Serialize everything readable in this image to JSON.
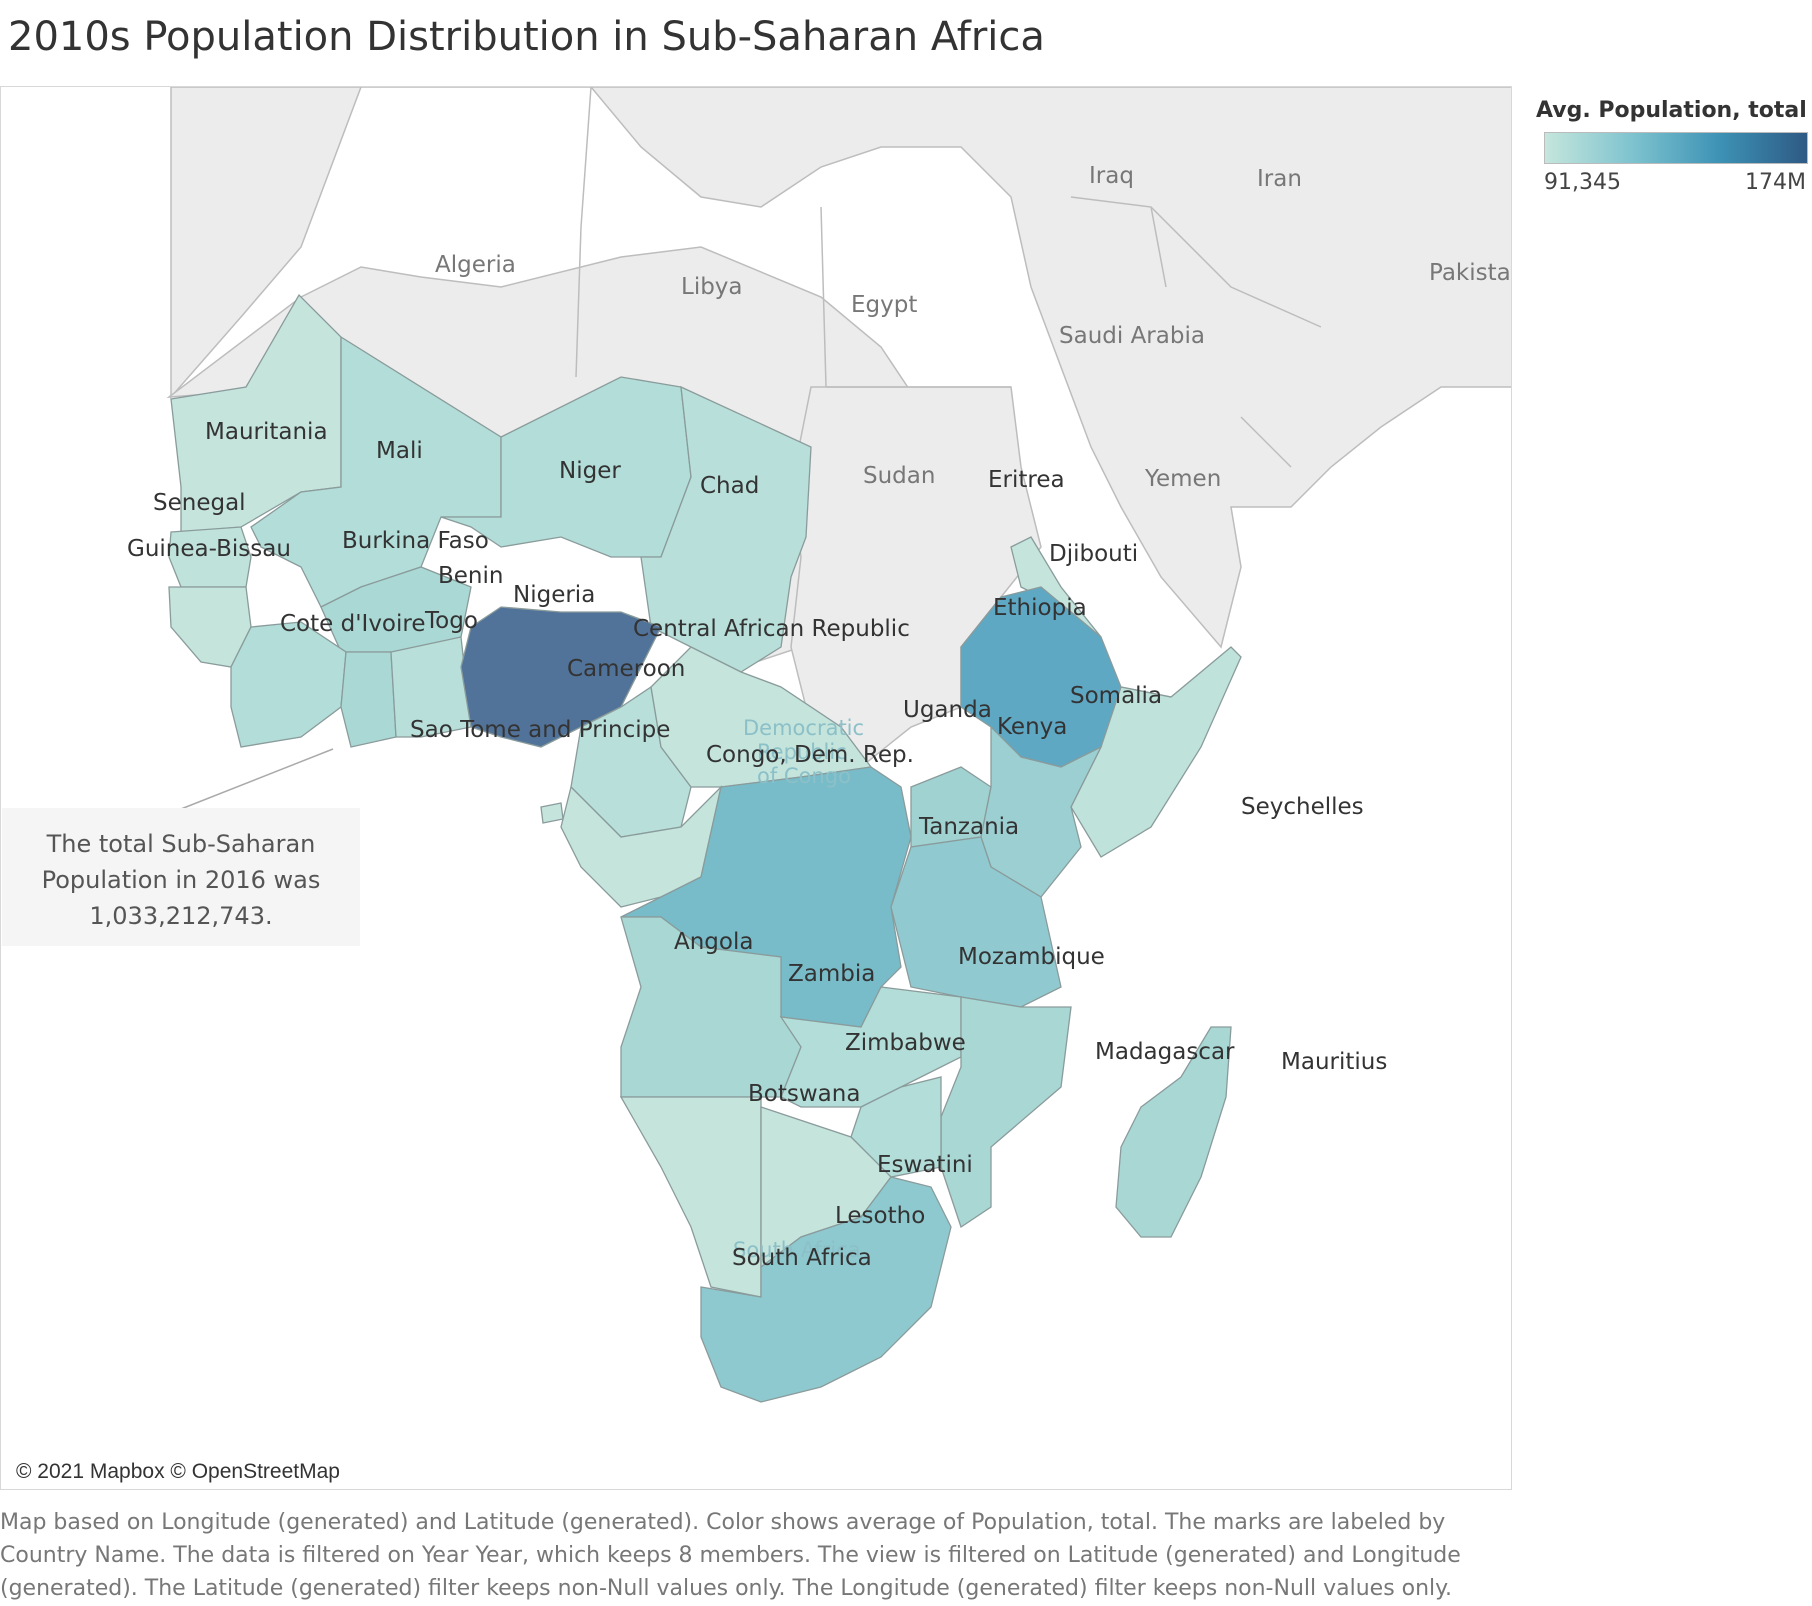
{
  "title": "2010s Population Distribution in Sub-Saharan Africa",
  "legend": {
    "title": "Avg. Population, total",
    "min_label": "91,345",
    "max_label": "174M",
    "colors": [
      "#c5e6dc",
      "#7ec3cf",
      "#3d92b5",
      "#2e5a85"
    ]
  },
  "annotation": {
    "line1": "The total Sub-Saharan",
    "line2": "Population in 2016 was",
    "line3": "1,033,212,743."
  },
  "attribution": "© 2021 Mapbox © OpenStreetMap",
  "caption": "Map based on Longitude (generated) and Latitude (generated).  Color shows average of Population, total.  The marks are labeled by Country Name. The data is filtered on Year Year, which keeps 8 members. The view is filtered on Latitude (generated) and Longitude (generated). The Latitude (generated) filter keeps non-Null values only. The Longitude (generated) filter keeps non-Null values only.",
  "basemap_labels": {
    "algeria": "Algeria",
    "libya": "Libya",
    "egypt": "Egypt",
    "iraq": "Iraq",
    "iran": "Iran",
    "saudi_arabia": "Saudi Arabia",
    "pakistan": "Pakistan",
    "sudan": "Sudan",
    "yemen": "Yemen",
    "drc_line1": "Democratic",
    "drc_line2": "Republic",
    "drc_line3": "of Congo",
    "south_africa": "South Africa"
  },
  "country_labels": {
    "mauritania": "Mauritania",
    "mali": "Mali",
    "niger": "Niger",
    "chad": "Chad",
    "senegal": "Senegal",
    "guinea_bissau": "Guinea-Bissau",
    "burkina_faso": "Burkina Faso",
    "benin": "Benin",
    "nigeria": "Nigeria",
    "cote_divoire": "Cote d'Ivoire",
    "togo": "Togo",
    "central_african_republic": "Central African Republic",
    "cameroon": "Cameroon",
    "sao_tome": "Sao Tome and Principe",
    "eritrea": "Eritrea",
    "djibouti": "Djibouti",
    "ethiopia": "Ethiopia",
    "somalia": "Somalia",
    "uganda": "Uganda",
    "kenya": "Kenya",
    "congo_dem_rep": "Congo, Dem. Rep.",
    "seychelles": "Seychelles",
    "tanzania": "Tanzania",
    "angola": "Angola",
    "zambia": "Zambia",
    "mozambique": "Mozambique",
    "zimbabwe": "Zimbabwe",
    "madagascar": "Madagascar",
    "mauritius": "Mauritius",
    "botswana": "Botswana",
    "eswatini": "Eswatini",
    "lesotho": "Lesotho",
    "south_africa": "South Africa"
  }
}
